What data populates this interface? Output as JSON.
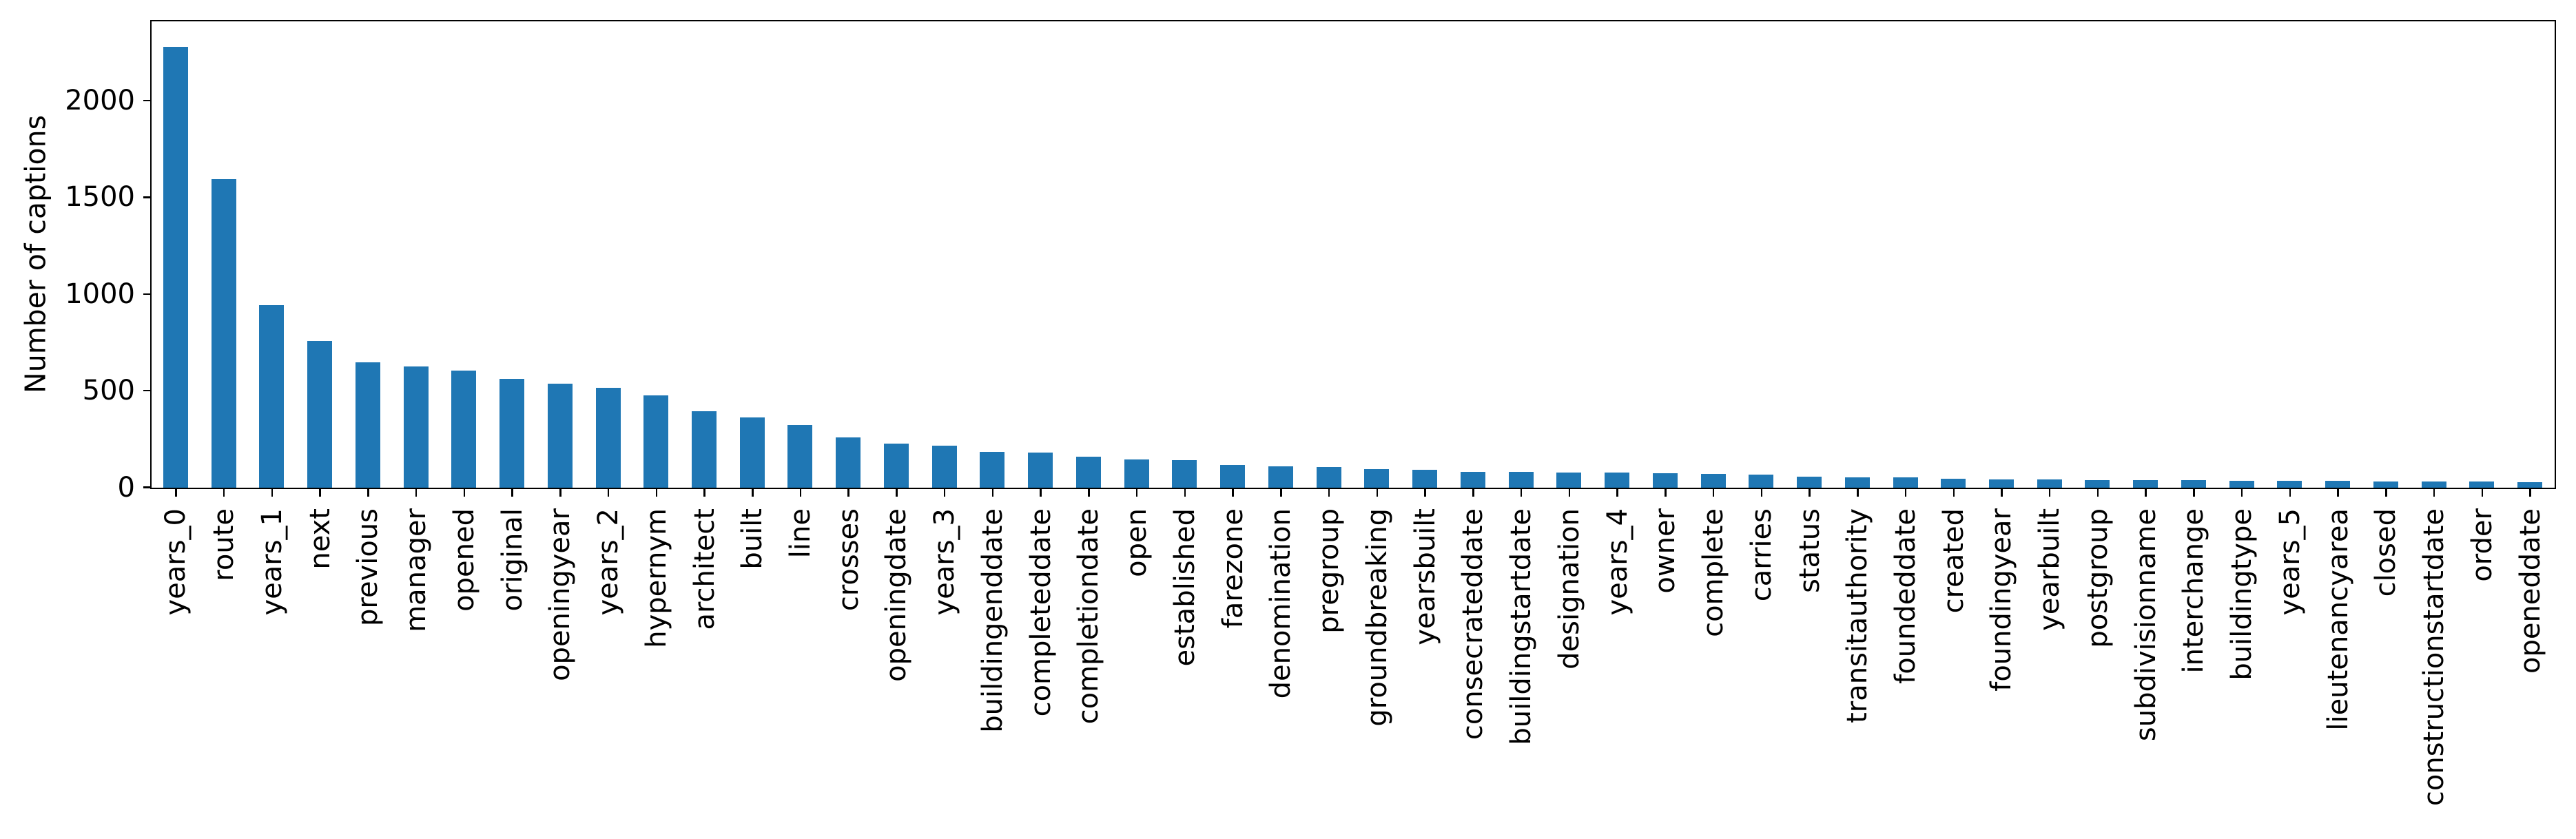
{
  "chart_data": {
    "type": "bar",
    "title": "",
    "xlabel": "",
    "ylabel": "Number of captions",
    "legend": "none",
    "grid": false,
    "bar_color": "#1f77b4",
    "axis_color": "#000000",
    "tick_label_rotation_deg": 90,
    "ylim": [
      0,
      2408
    ],
    "yticks": [
      0,
      500,
      1000,
      1500,
      2000
    ],
    "categories": [
      "years_0",
      "route",
      "years_1",
      "next",
      "previous",
      "manager",
      "opened",
      "original",
      "openingyear",
      "years_2",
      "hypernym",
      "architect",
      "built",
      "line",
      "crosses",
      "openingdate",
      "years_3",
      "buildingenddate",
      "completeddate",
      "completiondate",
      "open",
      "established",
      "farezone",
      "denomination",
      "pregroup",
      "groundbreaking",
      "yearsbuilt",
      "consecrateddate",
      "buildingstartdate",
      "designation",
      "years_4",
      "owner",
      "complete",
      "carries",
      "status",
      "transitauthority",
      "foundeddate",
      "created",
      "foundingyear",
      "yearbuilt",
      "postgroup",
      "subdivisionname",
      "interchange",
      "buildingtype",
      "years_5",
      "lieutenancyarea",
      "closed",
      "constructionstartdate",
      "order",
      "openeddate"
    ],
    "values": [
      2281,
      1597,
      945,
      758,
      648,
      628,
      606,
      562,
      538,
      517,
      476,
      396,
      363,
      323,
      261,
      229,
      217,
      185,
      183,
      160,
      147,
      143,
      119,
      110,
      107,
      97,
      91,
      83,
      82,
      79,
      78,
      76,
      70,
      69,
      57,
      55,
      52,
      45,
      43,
      42,
      41,
      39,
      39,
      37,
      37,
      36,
      33,
      32,
      31,
      30
    ]
  }
}
